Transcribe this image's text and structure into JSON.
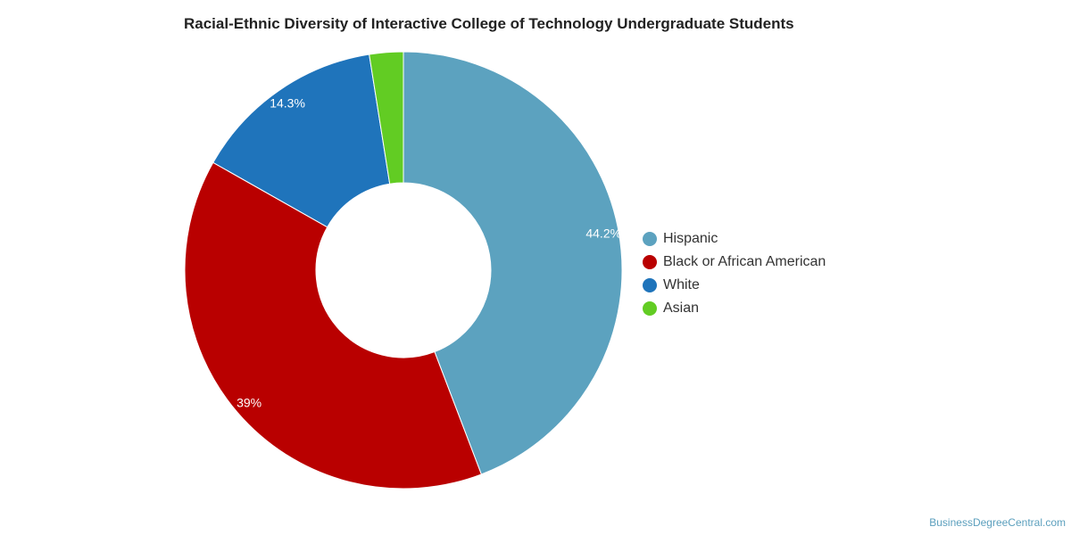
{
  "chart_data": {
    "type": "pie",
    "title": "Racial-Ethnic Diversity of Interactive College of Technology Undergraduate Students",
    "slices": [
      {
        "name": "Hispanic",
        "value": 44.2,
        "label": "44.2%",
        "color": "#5ca2bf"
      },
      {
        "name": "Black or African American",
        "value": 39,
        "label": "39%",
        "color": "#b90000"
      },
      {
        "name": "White",
        "value": 14.3,
        "label": "14.3%",
        "color": "#1f74bb"
      },
      {
        "name": "Asian",
        "value": 2.5,
        "label": "",
        "color": "#62cc23"
      }
    ],
    "legend_position": "right",
    "donut": true
  },
  "footer": {
    "source": "BusinessDegreeCentral.com"
  }
}
